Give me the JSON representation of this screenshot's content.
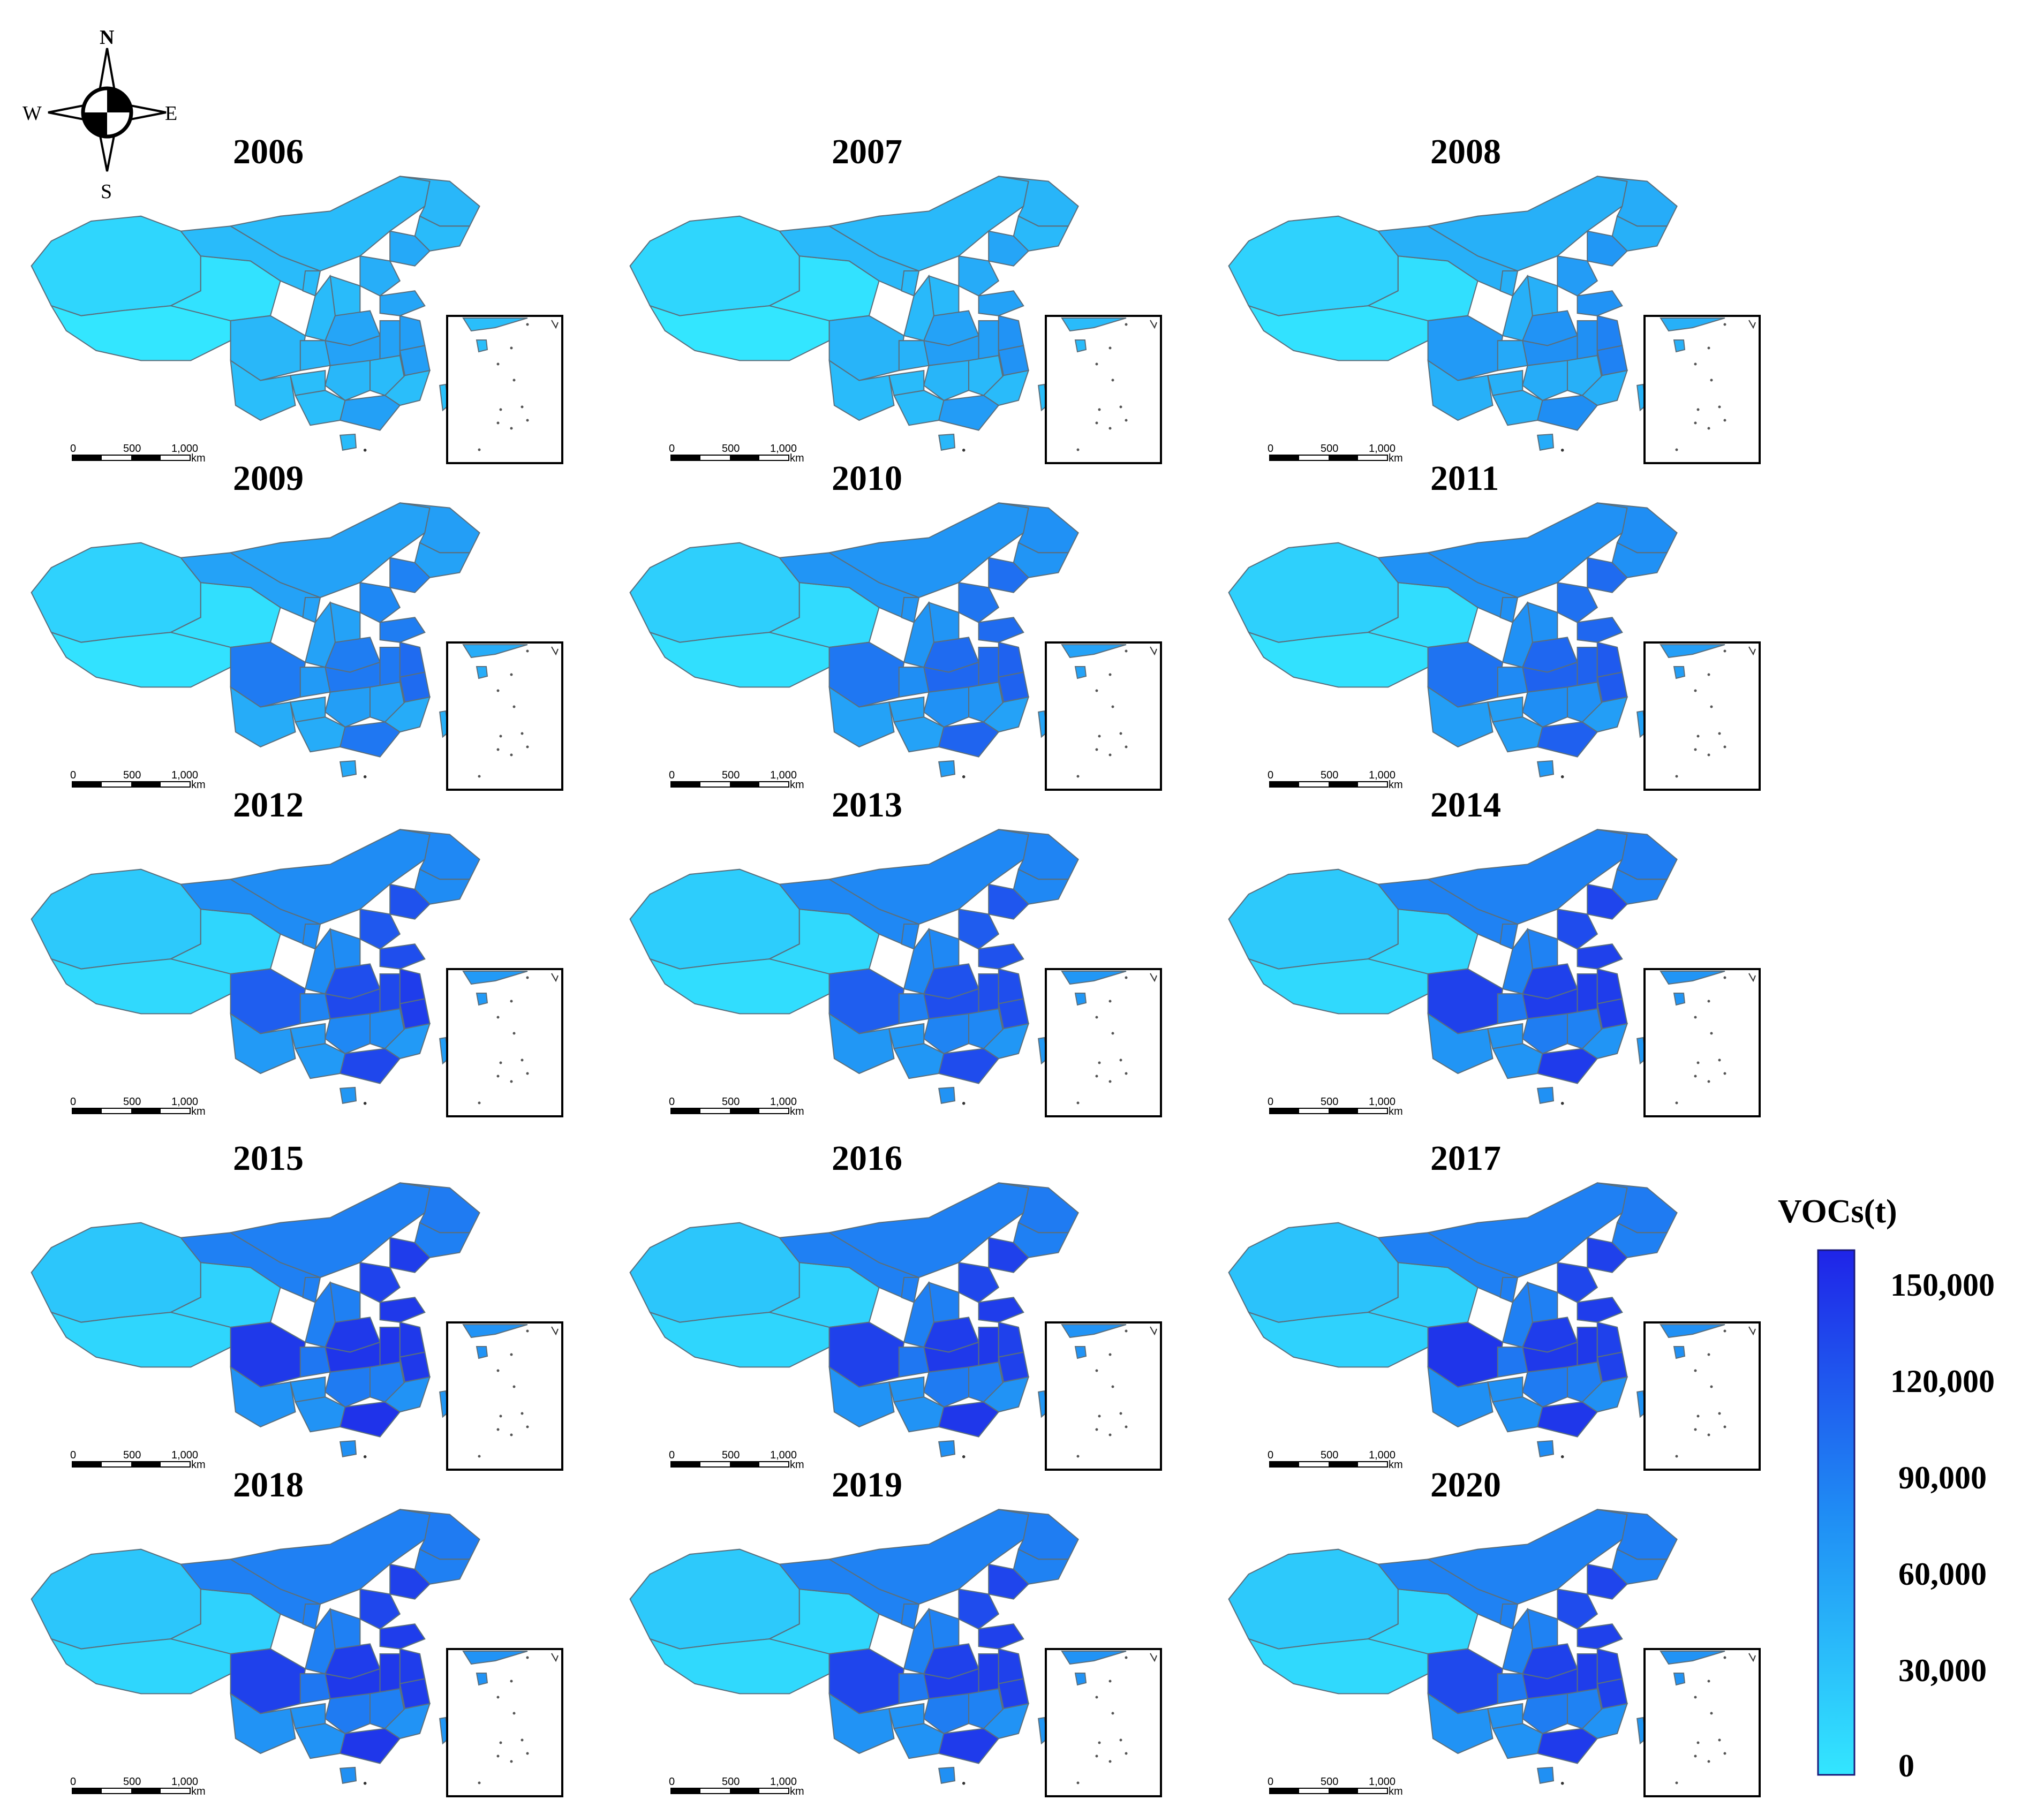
{
  "compass": {
    "north": "N",
    "south": "S",
    "east": "E",
    "west": "W"
  },
  "scale_bar": {
    "ticks": [
      "0",
      "500",
      "1,000"
    ],
    "unit": "km"
  },
  "legend": {
    "title": "VOCs(t)",
    "ticks": [
      "150,000",
      "120,000",
      "90,000",
      "60,000",
      "30,000",
      "0"
    ],
    "min": 0,
    "max": 160000,
    "color_low": "#33e6ff",
    "color_high": "#1f24e8"
  },
  "palette": {
    "province_stroke": "#5a6f7d",
    "inset_border": "#000000"
  },
  "maps": [
    {
      "year": "2006",
      "west": 0.05,
      "central": 0.24,
      "sichuan": 0.26,
      "east": 0.34,
      "coast": 0.4,
      "south": 0.22
    },
    {
      "year": "2007",
      "west": 0.05,
      "central": 0.25,
      "sichuan": 0.28,
      "east": 0.36,
      "coast": 0.46,
      "south": 0.24
    },
    {
      "year": "2008",
      "west": 0.07,
      "central": 0.3,
      "sichuan": 0.42,
      "east": 0.44,
      "coast": 0.55,
      "south": 0.3
    },
    {
      "year": "2009",
      "west": 0.07,
      "central": 0.38,
      "sichuan": 0.58,
      "east": 0.55,
      "coast": 0.66,
      "south": 0.32
    },
    {
      "year": "2010",
      "west": 0.09,
      "central": 0.45,
      "sichuan": 0.6,
      "east": 0.64,
      "coast": 0.7,
      "south": 0.38
    },
    {
      "year": "2011",
      "west": 0.08,
      "central": 0.47,
      "sichuan": 0.62,
      "east": 0.66,
      "coast": 0.74,
      "south": 0.4
    },
    {
      "year": "2012",
      "west": 0.12,
      "central": 0.5,
      "sichuan": 0.72,
      "east": 0.78,
      "coast": 0.88,
      "south": 0.42
    },
    {
      "year": "2013",
      "west": 0.1,
      "central": 0.52,
      "sichuan": 0.72,
      "east": 0.76,
      "coast": 0.8,
      "south": 0.44
    },
    {
      "year": "2014",
      "west": 0.12,
      "central": 0.55,
      "sichuan": 0.86,
      "east": 0.84,
      "coast": 0.88,
      "south": 0.45
    },
    {
      "year": "2015",
      "west": 0.14,
      "central": 0.56,
      "sichuan": 0.9,
      "east": 0.88,
      "coast": 0.9,
      "south": 0.46
    },
    {
      "year": "2016",
      "west": 0.14,
      "central": 0.56,
      "sichuan": 0.86,
      "east": 0.86,
      "coast": 0.86,
      "south": 0.46
    },
    {
      "year": "2017",
      "west": 0.16,
      "central": 0.56,
      "sichuan": 0.92,
      "east": 0.86,
      "coast": 0.86,
      "south": 0.48
    },
    {
      "year": "2018",
      "west": 0.14,
      "central": 0.56,
      "sichuan": 0.86,
      "east": 0.86,
      "coast": 0.88,
      "south": 0.46
    },
    {
      "year": "2019",
      "west": 0.12,
      "central": 0.55,
      "sichuan": 0.84,
      "east": 0.84,
      "coast": 0.86,
      "south": 0.46
    },
    {
      "year": "2020",
      "west": 0.12,
      "central": 0.55,
      "sichuan": 0.82,
      "east": 0.84,
      "coast": 0.86,
      "south": 0.46
    }
  ]
}
